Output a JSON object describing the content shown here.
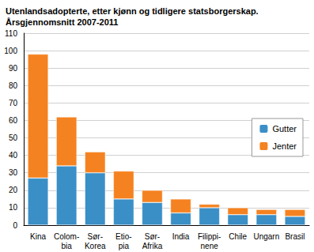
{
  "chart_data": {
    "type": "bar",
    "title": "Utenlandsadopterte, etter kjønn og tidligere statsborgerskap.\nÅrsgjennomsnitt 2007-2011",
    "categories": [
      "Kina",
      "Colom-\nbia",
      "Sør-\nKorea",
      "Etio-\npia",
      "Sør-\nAfrika",
      "India",
      "Filippi-\nnene",
      "Chile",
      "Ungarn",
      "Brasil"
    ],
    "series": [
      {
        "name": "Gutter",
        "color": "#3a8fc7",
        "values": [
          27,
          34,
          30,
          15,
          13,
          7,
          10,
          6,
          6,
          5
        ]
      },
      {
        "name": "Jenter",
        "color": "#f58220",
        "values": [
          71,
          28,
          12,
          16,
          7,
          8,
          2,
          4,
          3,
          4
        ]
      }
    ],
    "stacked": true,
    "ylim": [
      0,
      110
    ],
    "yticks": [
      0,
      10,
      20,
      30,
      40,
      50,
      60,
      70,
      80,
      90,
      100,
      110
    ],
    "grid": true,
    "legend": "right"
  }
}
